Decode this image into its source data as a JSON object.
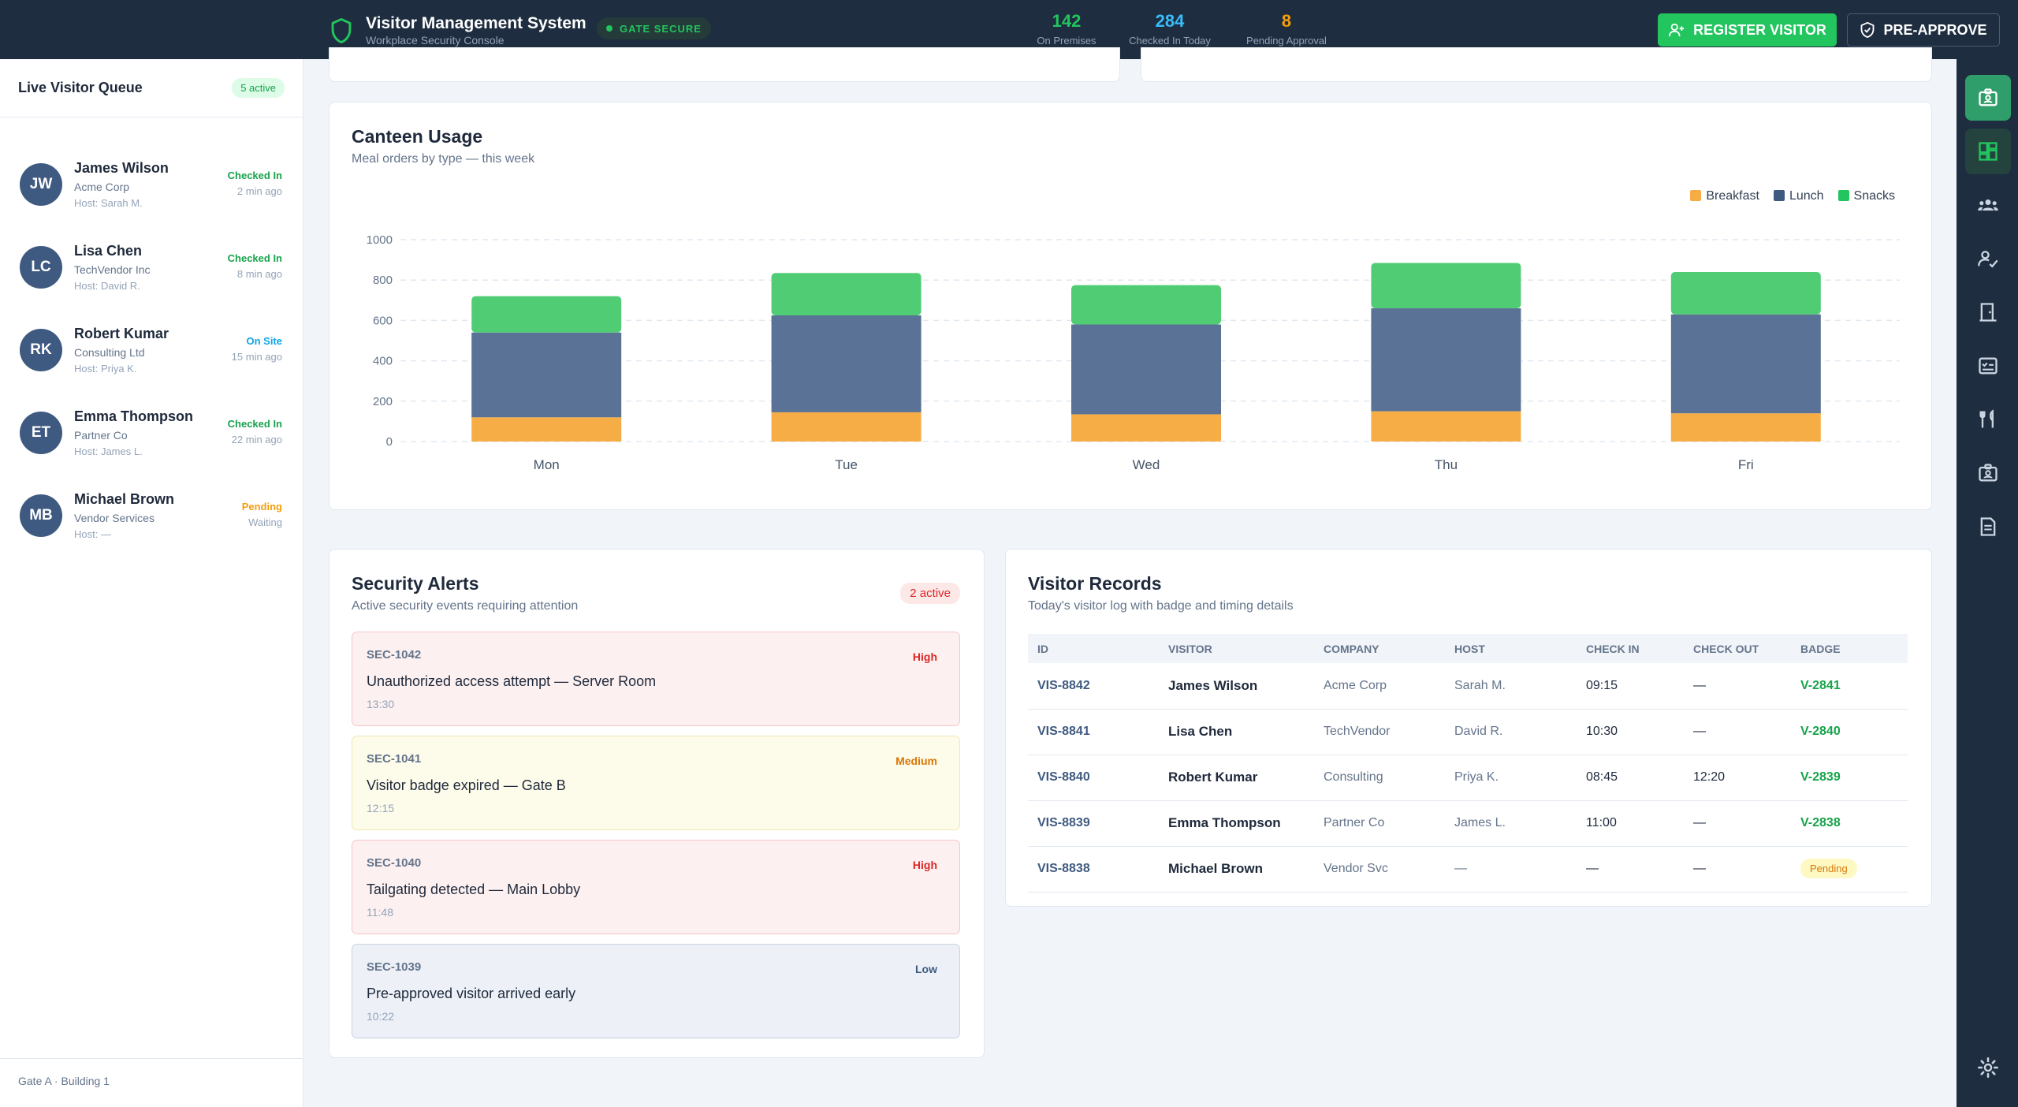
{
  "header": {
    "title": "Visitor Management System",
    "subtitle": "Workplace Security Console",
    "gate_status": "GATE SECURE",
    "stats": [
      {
        "value": "142",
        "label": "On Premises",
        "color": "#22c55e"
      },
      {
        "value": "284",
        "label": "Checked In Today",
        "color": "#38bdf8"
      },
      {
        "value": "8",
        "label": "Pending Approval",
        "color": "#f59e0b"
      }
    ],
    "register_label": "REGISTER VISITOR",
    "preapprove_label": "PRE-APPROVE"
  },
  "queue": {
    "title": "Live Visitor Queue",
    "badge": "5 active",
    "items": [
      {
        "initials": "JW",
        "name": "James Wilson",
        "company": "Acme Corp",
        "host": "Host: Sarah M.",
        "status": "Checked In",
        "time": "2 min ago",
        "status_color": "#16a34a"
      },
      {
        "initials": "LC",
        "name": "Lisa Chen",
        "company": "TechVendor Inc",
        "host": "Host: David R.",
        "status": "Checked In",
        "time": "8 min ago",
        "status_color": "#16a34a"
      },
      {
        "initials": "RK",
        "name": "Robert Kumar",
        "company": "Consulting Ltd",
        "host": "Host: Priya K.",
        "status": "On Site",
        "time": "15 min ago",
        "status_color": "#0ea5e9"
      },
      {
        "initials": "ET",
        "name": "Emma Thompson",
        "company": "Partner Co",
        "host": "Host: James L.",
        "status": "Checked In",
        "time": "22 min ago",
        "status_color": "#16a34a"
      },
      {
        "initials": "MB",
        "name": "Michael Brown",
        "company": "Vendor Services",
        "host": "Host: —",
        "status": "Pending",
        "time": "Waiting",
        "status_color": "#f59e0b"
      }
    ],
    "footer": "Gate A · Building 1"
  },
  "canteen": {
    "title": "Canteen Usage",
    "subtitle": "Meal orders by type — this week"
  },
  "chart_data": {
    "type": "bar",
    "stacked": true,
    "categories": [
      "Mon",
      "Tue",
      "Wed",
      "Thu",
      "Fri"
    ],
    "series": [
      {
        "name": "Breakfast",
        "color": "#f6ad45",
        "values": [
          120,
          145,
          135,
          150,
          140
        ]
      },
      {
        "name": "Lunch",
        "color": "#5a7295",
        "values": [
          420,
          480,
          445,
          510,
          490
        ]
      },
      {
        "name": "Snacks",
        "color": "#50cd74",
        "values": [
          180,
          210,
          195,
          225,
          210
        ]
      }
    ],
    "yticks": [
      0,
      200,
      400,
      600,
      800,
      1000
    ],
    "ylim": [
      0,
      1000
    ],
    "grid": true,
    "legend_position": "top-right"
  },
  "alerts": {
    "title": "Security Alerts",
    "subtitle": "Active security events requiring attention",
    "badge": "2 active",
    "items": [
      {
        "id": "SEC-1042",
        "severity": "High",
        "title": "Unauthorized access attempt — Server Room",
        "time": "13:30",
        "bg": "#fdf0f0",
        "border": "#f5c6c6",
        "sev_color": "#dc2626"
      },
      {
        "id": "SEC-1041",
        "severity": "Medium",
        "title": "Visitor badge expired — Gate B",
        "time": "12:15",
        "bg": "#fdfbea",
        "border": "#f3e7b5",
        "sev_color": "#d97706"
      },
      {
        "id": "SEC-1040",
        "severity": "High",
        "title": "Tailgating detected — Main Lobby",
        "time": "11:48",
        "bg": "#fdf0f0",
        "border": "#f5c6c6",
        "sev_color": "#dc2626"
      },
      {
        "id": "SEC-1039",
        "severity": "Low",
        "title": "Pre-approved visitor arrived early",
        "time": "10:22",
        "bg": "#edf1f7",
        "border": "#c8d3e3",
        "sev_color": "#3f5a80"
      }
    ]
  },
  "records": {
    "title": "Visitor Records",
    "subtitle": "Today's visitor log with badge and timing details",
    "columns": [
      "ID",
      "VISITOR",
      "COMPANY",
      "HOST",
      "CHECK IN",
      "CHECK OUT",
      "BADGE"
    ],
    "rows": [
      {
        "id": "VIS-8842",
        "visitor": "James Wilson",
        "company": "Acme Corp",
        "host": "Sarah M.",
        "check_in": "09:15",
        "check_out": "—",
        "badge": "V-2841"
      },
      {
        "id": "VIS-8841",
        "visitor": "Lisa Chen",
        "company": "TechVendor",
        "host": "David R.",
        "check_in": "10:30",
        "check_out": "—",
        "badge": "V-2840"
      },
      {
        "id": "VIS-8840",
        "visitor": "Robert Kumar",
        "company": "Consulting",
        "host": "Priya K.",
        "check_in": "08:45",
        "check_out": "12:20",
        "badge": "V-2839"
      },
      {
        "id": "VIS-8839",
        "visitor": "Emma Thompson",
        "company": "Partner Co",
        "host": "James L.",
        "check_in": "11:00",
        "check_out": "—",
        "badge": "V-2838"
      },
      {
        "id": "VIS-8838",
        "visitor": "Michael Brown",
        "company": "Vendor Svc",
        "host": "—",
        "check_in": "—",
        "check_out": "—",
        "badge": "Pending"
      }
    ]
  },
  "rail": {
    "icons": [
      "visitor-badge-icon",
      "dashboard-icon",
      "group-icon",
      "approval-icon",
      "building-icon",
      "checklist-icon",
      "canteen-icon",
      "id-card-icon",
      "report-icon",
      "settings-icon"
    ]
  }
}
